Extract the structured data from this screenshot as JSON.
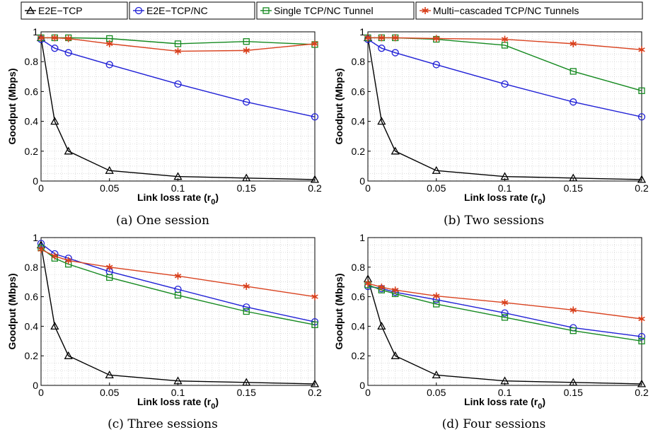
{
  "colors": {
    "E2E-TCP": "#000000",
    "E2E-TCP/NC": "#1f1fd6",
    "Single TCP/NC Tunnel": "#14891f",
    "Multi-cascaded TCP/NC Tunnels": "#d9421f",
    "grid": "#c8c8c8"
  },
  "legend": [
    {
      "name": "E2E−TCP",
      "marker": "triangle"
    },
    {
      "name": "E2E−TCP/NC",
      "marker": "circle"
    },
    {
      "name": "Single TCP/NC Tunnel",
      "marker": "square"
    },
    {
      "name": "Multi−cascaded TCP/NC Tunnels",
      "marker": "star"
    }
  ],
  "chart_data": [
    {
      "type": "line",
      "caption": "(a) One session",
      "xlabel": "Link loss rate (r",
      "xlabel_sub": "0",
      "xlabel_end": ")",
      "ylabel": "Goodput (Mbps)",
      "xlim": [
        0,
        0.2
      ],
      "ylim": [
        0,
        1
      ],
      "xticks": [
        "0",
        "0.05",
        "0.1",
        "0.15",
        "0.2"
      ],
      "yticks": [
        "0",
        "0.2",
        "0.4",
        "0.6",
        "0.8",
        "1"
      ],
      "grid": true,
      "x": [
        0,
        0.01,
        0.02,
        0.05,
        0.1,
        0.15,
        0.2
      ],
      "series": [
        {
          "name": "E2E−TCP",
          "values": [
            0.96,
            0.4,
            0.2,
            0.07,
            0.03,
            0.02,
            0.01
          ]
        },
        {
          "name": "E2E−TCP/NC",
          "values": [
            0.95,
            0.89,
            0.86,
            0.78,
            0.65,
            0.53,
            0.43
          ]
        },
        {
          "name": "Single TCP/NC Tunnel",
          "values": [
            0.96,
            0.96,
            0.96,
            0.955,
            0.92,
            0.935,
            0.915
          ]
        },
        {
          "name": "Multi−cascaded TCP/NC Tunnels",
          "values": [
            0.96,
            0.96,
            0.955,
            0.92,
            0.87,
            0.875,
            0.92
          ]
        }
      ]
    },
    {
      "type": "line",
      "caption": "(b) Two sessions",
      "xlabel": "Link loss rate (r",
      "xlabel_sub": "0",
      "xlabel_end": ")",
      "ylabel": "Goodput (Mbps)",
      "xlim": [
        0,
        0.2
      ],
      "ylim": [
        0,
        1
      ],
      "xticks": [
        "0",
        "0.05",
        "0.1",
        "0.15",
        "0.2"
      ],
      "yticks": [
        "0",
        "0.2",
        "0.4",
        "0.6",
        "0.8",
        "1"
      ],
      "grid": true,
      "x": [
        0,
        0.01,
        0.02,
        0.05,
        0.1,
        0.15,
        0.2
      ],
      "series": [
        {
          "name": "E2E−TCP",
          "values": [
            0.96,
            0.4,
            0.2,
            0.07,
            0.03,
            0.02,
            0.01
          ]
        },
        {
          "name": "E2E−TCP/NC",
          "values": [
            0.95,
            0.89,
            0.86,
            0.78,
            0.65,
            0.53,
            0.43
          ]
        },
        {
          "name": "Single TCP/NC Tunnel",
          "values": [
            0.96,
            0.96,
            0.96,
            0.95,
            0.91,
            0.735,
            0.605
          ]
        },
        {
          "name": "Multi−cascaded TCP/NC Tunnels",
          "values": [
            0.96,
            0.96,
            0.96,
            0.955,
            0.95,
            0.92,
            0.88
          ]
        }
      ]
    },
    {
      "type": "line",
      "caption": "(c) Three sessions",
      "xlabel": "Link loss rate (r",
      "xlabel_sub": "0",
      "xlabel_end": ")",
      "ylabel": "Goodput (Mbps)",
      "xlim": [
        0,
        0.2
      ],
      "ylim": [
        0,
        1
      ],
      "xticks": [
        "0",
        "0.05",
        "0.1",
        "0.15",
        "0.2"
      ],
      "yticks": [
        "0",
        "0.2",
        "0.4",
        "0.6",
        "0.8",
        "1"
      ],
      "grid": true,
      "x": [
        0,
        0.01,
        0.02,
        0.05,
        0.1,
        0.15,
        0.2
      ],
      "series": [
        {
          "name": "E2E−TCP",
          "values": [
            0.95,
            0.4,
            0.2,
            0.07,
            0.03,
            0.02,
            0.01
          ]
        },
        {
          "name": "E2E−TCP/NC",
          "values": [
            0.96,
            0.89,
            0.86,
            0.77,
            0.65,
            0.53,
            0.43
          ]
        },
        {
          "name": "Single TCP/NC Tunnel",
          "values": [
            0.93,
            0.86,
            0.82,
            0.73,
            0.61,
            0.5,
            0.41
          ]
        },
        {
          "name": "Multi−cascaded TCP/NC Tunnels",
          "values": [
            0.92,
            0.875,
            0.845,
            0.8,
            0.74,
            0.67,
            0.6
          ]
        }
      ]
    },
    {
      "type": "line",
      "caption": "(d) Four sessions",
      "xlabel": "Link loss rate (r",
      "xlabel_sub": "0",
      "xlabel_end": ")",
      "ylabel": "Goodput (Mbps)",
      "xlim": [
        0,
        0.2
      ],
      "ylim": [
        0,
        1
      ],
      "xticks": [
        "0",
        "0.05",
        "0.1",
        "0.15",
        "0.2"
      ],
      "yticks": [
        "0",
        "0.2",
        "0.4",
        "0.6",
        "0.8",
        "1"
      ],
      "grid": true,
      "x": [
        0,
        0.01,
        0.02,
        0.05,
        0.1,
        0.15,
        0.2
      ],
      "series": [
        {
          "name": "E2E−TCP",
          "values": [
            0.72,
            0.4,
            0.2,
            0.07,
            0.03,
            0.02,
            0.01
          ]
        },
        {
          "name": "E2E−TCP/NC",
          "values": [
            0.67,
            0.655,
            0.63,
            0.58,
            0.49,
            0.39,
            0.33
          ]
        },
        {
          "name": "Single TCP/NC Tunnel",
          "values": [
            0.68,
            0.645,
            0.62,
            0.55,
            0.46,
            0.37,
            0.3
          ]
        },
        {
          "name": "Multi−cascaded TCP/NC Tunnels",
          "values": [
            0.69,
            0.665,
            0.645,
            0.605,
            0.56,
            0.51,
            0.45
          ]
        }
      ]
    }
  ]
}
